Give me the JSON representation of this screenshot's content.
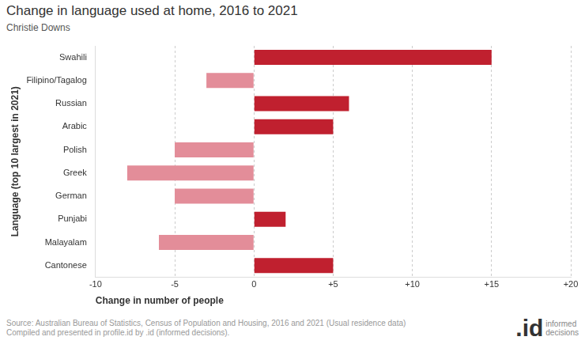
{
  "chart_data": {
    "type": "bar",
    "orientation": "horizontal",
    "title": "Change in language used at home, 2016 to 2021",
    "subtitle": "Christie Downs",
    "x_label": "Change in number of people",
    "y_label": "Language (top 10 largest in 2021)",
    "categories": [
      "Swahili",
      "Filipino/Tagalog",
      "Russian",
      "Arabic",
      "Polish",
      "Greek",
      "German",
      "Punjabi",
      "Malayalam",
      "Cantonese"
    ],
    "values": [
      15,
      -3,
      6,
      5,
      -5,
      -8,
      -5,
      2,
      -6,
      5
    ],
    "colors": [
      "#c0202f",
      "#e38d99",
      "#c0202f",
      "#c0202f",
      "#e38d99",
      "#e38d99",
      "#e38d99",
      "#c0202f",
      "#e38d99",
      "#c0202f"
    ],
    "xlim": [
      -10,
      20
    ],
    "xticks": [
      -10,
      -5,
      0,
      {
        "value": 5,
        "label": "+5"
      },
      {
        "value": 10,
        "label": "+10"
      },
      {
        "value": 15,
        "label": "+15"
      },
      {
        "value": 20,
        "label": "+20"
      }
    ],
    "grid": true,
    "source": [
      "Source: Australian Bureau of Statistics, Census of Population and Housing, 2016 and 2021 (Usual residence data)",
      "Compiled and presented in profile.id by .id (informed decisions)."
    ],
    "logo": [
      ".id",
      "informed",
      "decisions"
    ]
  }
}
